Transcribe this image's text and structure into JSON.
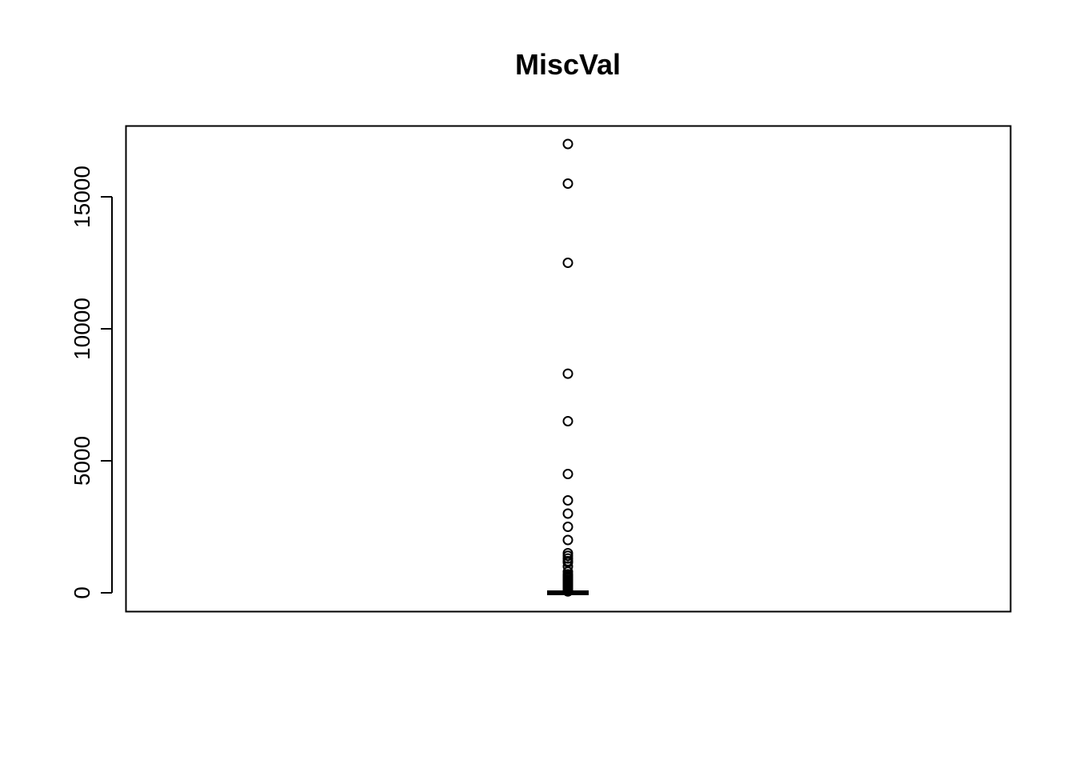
{
  "chart_data": {
    "type": "boxplot",
    "title": "MiscVal",
    "xlabel": "",
    "ylabel": "",
    "ylim": [
      -700,
      17700
    ],
    "yticks": [
      0,
      5000,
      10000,
      15000
    ],
    "ytick_labels": [
      "0",
      "5000",
      "10000",
      "15000"
    ],
    "box": {
      "min": 0,
      "q1": 0,
      "median": 0,
      "q3": 0,
      "max": 0
    },
    "outliers": [
      17000,
      15500,
      12500,
      8300,
      6500,
      4500,
      3500,
      3000,
      2500,
      2000,
      1500,
      1400,
      1300,
      1200,
      1150,
      1000,
      800,
      700,
      650,
      600,
      560,
      500,
      480,
      450,
      420,
      400,
      350,
      300,
      250,
      200,
      130,
      80,
      54
    ],
    "grid": false,
    "colors": {
      "stroke": "#000000",
      "background": "#ffffff"
    }
  }
}
